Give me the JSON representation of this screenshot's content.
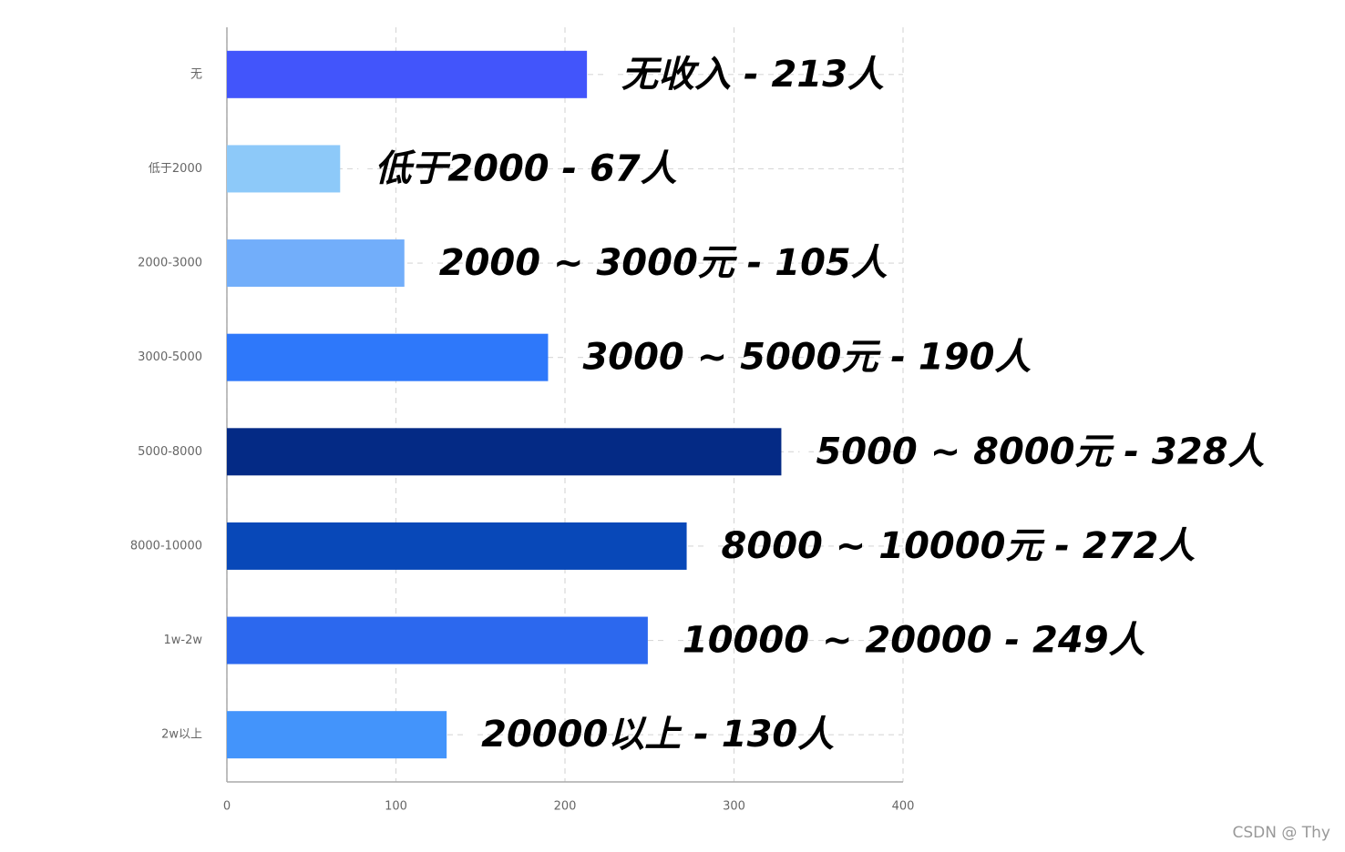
{
  "chart_data": {
    "type": "bar",
    "orientation": "horizontal",
    "categories": [
      "无",
      "低于2000",
      "2000-3000",
      "3000-5000",
      "5000-8000",
      "8000-10000",
      "1w-2w",
      "2w以上"
    ],
    "values": [
      213,
      67,
      105,
      190,
      328,
      272,
      249,
      130
    ],
    "value_labels": [
      "无收入 - 213人",
      "低于2000 - 67人",
      "2000 ~ 3000元 - 105人",
      "3000 ~ 5000元 - 190人",
      "5000 ~ 8000元 - 328人",
      "8000 ~ 10000元 - 272人",
      "10000 ~ 20000 - 249人",
      "20000以上 - 130人"
    ],
    "colors": [
      "#4255fb",
      "#8dc9f9",
      "#72aefa",
      "#2e78fa",
      "#042a85",
      "#0848b8",
      "#2c68ee",
      "#4394fb"
    ],
    "xlim": [
      0,
      400
    ],
    "xticks": [
      0,
      100,
      200,
      300,
      400
    ],
    "grid": true,
    "watermark": "CSDN @ Thy"
  }
}
